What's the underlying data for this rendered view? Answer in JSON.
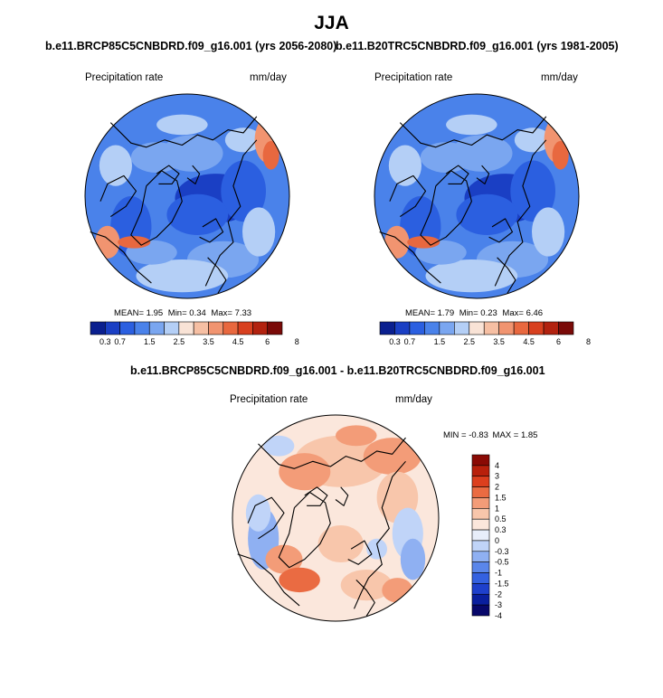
{
  "page": {
    "title": "JJA"
  },
  "colors": {
    "abs_palette": [
      "#0a1f8f",
      "#1a3fc4",
      "#2b5fe0",
      "#4a82ea",
      "#7aa6f0",
      "#b4cff6",
      "#f9e3d6",
      "#f6bfa3",
      "#f19470",
      "#e8683f",
      "#d8401f",
      "#b2220f",
      "#7a0a08"
    ],
    "diff_palette": [
      "#08086b",
      "#0a1f9e",
      "#1e40cc",
      "#3461e0",
      "#5a86ea",
      "#8fb0f2",
      "#c0d4f8",
      "#e8eefa",
      "#fbe7dc",
      "#f8c6ab",
      "#f39c78",
      "#ea6b42",
      "#dc3f1e",
      "#b8200c",
      "#8a0a05"
    ],
    "coastline": "#000000"
  },
  "chart_data": [
    {
      "type": "polar_contour_map",
      "name": "future",
      "title": "b.e11.BRCP85C5CNBDRD.f09_g16.001 (yrs 2056-2080)",
      "variable": "Precipitation rate",
      "units": "mm/day",
      "stats": {
        "mean_label": "MEAN=",
        "mean": "1.95",
        "min_label": "Min=",
        "min": "0.34",
        "max_label": "Max=",
        "max": "7.33"
      },
      "colorbar": {
        "orientation": "horizontal",
        "levels": [
          0.3,
          0.7,
          1,
          1.5,
          2,
          2.5,
          3,
          3.5,
          4,
          4.5,
          5,
          6,
          7,
          8
        ],
        "tick_labels": [
          "0.3",
          "0.7",
          "1.5",
          "2.5",
          "3.5",
          "4.5",
          "6",
          "8"
        ]
      }
    },
    {
      "type": "polar_contour_map",
      "name": "historical",
      "title": "b.e11.B20TRC5CNBDRD.f09_g16.001 (yrs 1981-2005)",
      "variable": "Precipitation rate",
      "units": "mm/day",
      "stats": {
        "mean_label": "MEAN=",
        "mean": "1.79",
        "min_label": "Min=",
        "min": "0.23",
        "max_label": "Max=",
        "max": "6.46"
      },
      "colorbar": {
        "orientation": "horizontal",
        "levels": [
          0.3,
          0.7,
          1,
          1.5,
          2,
          2.5,
          3,
          3.5,
          4,
          4.5,
          5,
          6,
          7,
          8
        ],
        "tick_labels": [
          "0.3",
          "0.7",
          "1.5",
          "2.5",
          "3.5",
          "4.5",
          "6",
          "8"
        ]
      }
    },
    {
      "type": "polar_contour_map",
      "name": "difference",
      "title": "b.e11.BRCP85C5CNBDRD.f09_g16.001 - b.e11.B20TRC5CNBDRD.f09_g16.001",
      "variable": "Precipitation rate",
      "units": "mm/day",
      "stats": {
        "min_label": "MIN =",
        "min": "-0.83",
        "max_label": "MAX =",
        "max": "1.85"
      },
      "colorbar": {
        "orientation": "vertical",
        "levels": [
          -4,
          -3,
          -2,
          -1.5,
          -1,
          -0.5,
          -0.3,
          0,
          0.3,
          0.5,
          1,
          1.5,
          2,
          3,
          4
        ],
        "tick_labels": [
          "4",
          "3",
          "2",
          "1.5",
          "1",
          "0.5",
          "0.3",
          "0",
          "-0.3",
          "-0.5",
          "-1",
          "-1.5",
          "-2",
          "-3",
          "-4"
        ]
      }
    }
  ]
}
